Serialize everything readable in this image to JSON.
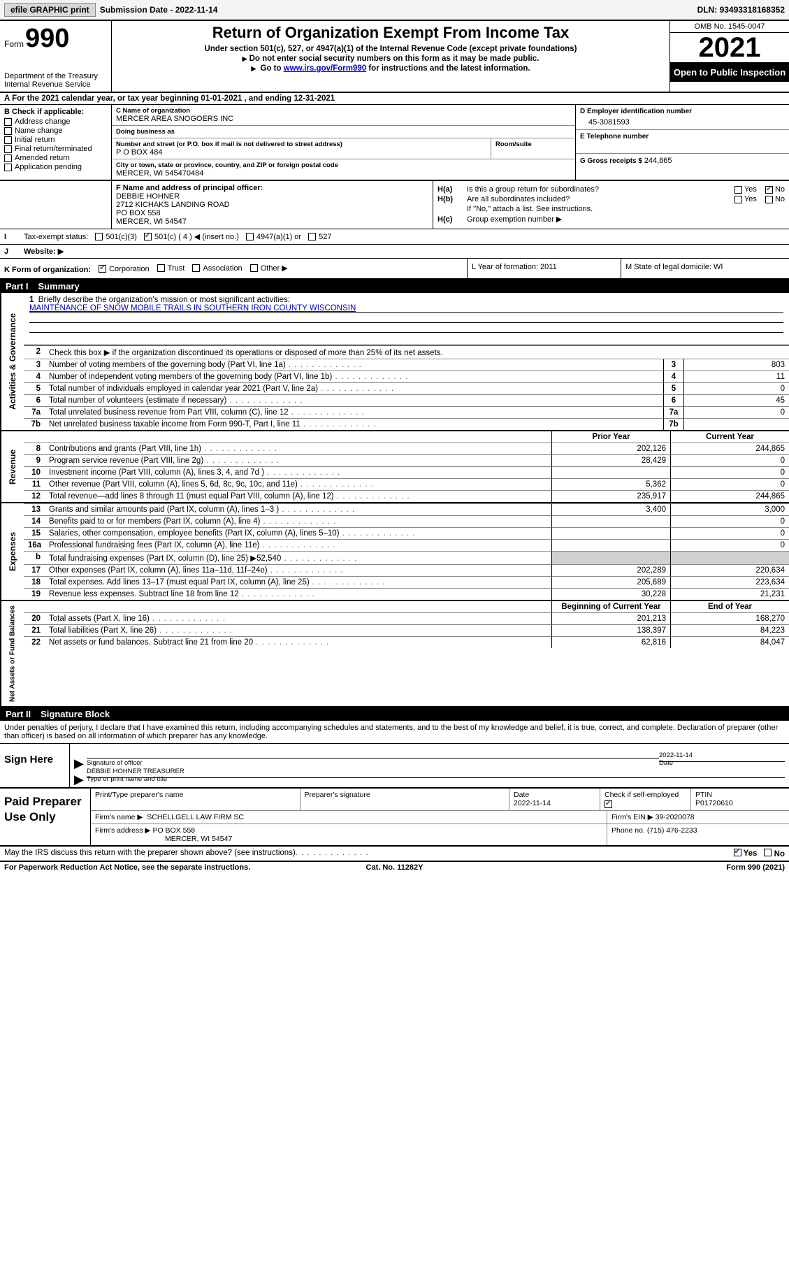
{
  "topbar": {
    "efile_btn": "efile GRAPHIC print",
    "submission_label": "Submission Date - ",
    "submission_date": "2022-11-14",
    "dln_label": "DLN: ",
    "dln": "93493318168352"
  },
  "header": {
    "form_label": "Form",
    "form_number": "990",
    "dept": "Department of the Treasury",
    "irs": "Internal Revenue Service",
    "title": "Return of Organization Exempt From Income Tax",
    "subtitle": "Under section 501(c), 527, or 4947(a)(1) of the Internal Revenue Code (except private foundations)",
    "note1": "Do not enter social security numbers on this form as it may be made public.",
    "note2_pre": "Go to ",
    "note2_link": "www.irs.gov/Form990",
    "note2_post": " for instructions and the latest information.",
    "omb": "OMB No. 1545-0047",
    "year": "2021",
    "open": "Open to Public Inspection"
  },
  "row_a": "A For the 2021 calendar year, or tax year beginning 01-01-2021    , and ending 12-31-2021",
  "col_b": {
    "hdr": "B Check if applicable:",
    "opts": [
      "Address change",
      "Name change",
      "Initial return",
      "Final return/terminated",
      "Amended return",
      "Application pending"
    ]
  },
  "col_c": {
    "name_lbl": "C Name of organization",
    "name": "MERCER AREA SNOGOERS INC",
    "dba_lbl": "Doing business as",
    "dba": "",
    "street_lbl": "Number and street (or P.O. box if mail is not delivered to street address)",
    "street": "P O BOX 484",
    "room_lbl": "Room/suite",
    "city_lbl": "City or town, state or province, country, and ZIP or foreign postal code",
    "city": "MERCER, WI  545470484"
  },
  "col_de": {
    "d_lbl": "D Employer identification number",
    "d_val": "45-3081593",
    "e_lbl": "E Telephone number",
    "e_val": "",
    "g_lbl": "G Gross receipts $ ",
    "g_val": "244,865"
  },
  "officer": {
    "lbl": "F  Name and address of principal officer:",
    "name": "DEBBIE HOHNER",
    "addr1": "2712 KICHAKS LANDING ROAD",
    "addr2": "PO BOX 558",
    "addr3": "MERCER, WI  54547"
  },
  "h": {
    "a": "Is this a group return for subordinates?",
    "b": "Are all subordinates included?",
    "b_note": "If \"No,\" attach a list. See instructions.",
    "c": "Group exemption number ▶",
    "yes": "Yes",
    "no": "No"
  },
  "row_i": {
    "tag": "I",
    "lbl": "Tax-exempt status:",
    "o1": "501(c)(3)",
    "o2": "501(c) ( 4 ) ◀ (insert no.)",
    "o3": "4947(a)(1) or",
    "o4": "527"
  },
  "row_j": {
    "tag": "J",
    "lbl": "Website: ▶"
  },
  "row_k": {
    "k_lbl": "K Form of organization:",
    "opts": [
      "Corporation",
      "Trust",
      "Association",
      "Other ▶"
    ],
    "l": "L Year of formation: 2011",
    "m": "M State of legal domicile: WI"
  },
  "part1": "Part I",
  "part1_title": "Summary",
  "sides": {
    "gov": "Activities & Governance",
    "rev": "Revenue",
    "exp": "Expenses",
    "net": "Net Assets or Fund Balances"
  },
  "mission": {
    "lbl": "Briefly describe the organization's mission or most significant activities:",
    "txt": "MAINTENANCE OF SNOW MOBILE TRAILS IN SOUTHERN IRON COUNTY WISCONSIN"
  },
  "line2": "Check this box ▶        if the organization discontinued its operations or disposed of more than 25% of its net assets.",
  "gov_lines": [
    {
      "n": "3",
      "d": "Number of voting members of the governing body (Part VI, line 1a)",
      "v": "803"
    },
    {
      "n": "4",
      "d": "Number of independent voting members of the governing body (Part VI, line 1b)",
      "v": "11"
    },
    {
      "n": "5",
      "d": "Total number of individuals employed in calendar year 2021 (Part V, line 2a)",
      "v": "0"
    },
    {
      "n": "6",
      "d": "Total number of volunteers (estimate if necessary)",
      "v": "45"
    },
    {
      "n": "7a",
      "d": "Total unrelated business revenue from Part VIII, column (C), line 12",
      "v": "0"
    },
    {
      "n": "7b",
      "d": "Net unrelated business taxable income from Form 990-T, Part I, line 11",
      "v": ""
    }
  ],
  "fin_hdr": {
    "py": "Prior Year",
    "cy": "Current Year"
  },
  "rev_lines": [
    {
      "n": "8",
      "d": "Contributions and grants (Part VIII, line 1h)",
      "py": "202,126",
      "cy": "244,865"
    },
    {
      "n": "9",
      "d": "Program service revenue (Part VIII, line 2g)",
      "py": "28,429",
      "cy": "0"
    },
    {
      "n": "10",
      "d": "Investment income (Part VIII, column (A), lines 3, 4, and 7d )",
      "py": "",
      "cy": "0"
    },
    {
      "n": "11",
      "d": "Other revenue (Part VIII, column (A), lines 5, 6d, 8c, 9c, 10c, and 11e)",
      "py": "5,362",
      "cy": "0"
    },
    {
      "n": "12",
      "d": "Total revenue—add lines 8 through 11 (must equal Part VIII, column (A), line 12)",
      "py": "235,917",
      "cy": "244,865"
    }
  ],
  "exp_lines": [
    {
      "n": "13",
      "d": "Grants and similar amounts paid (Part IX, column (A), lines 1–3 )",
      "py": "3,400",
      "cy": "3,000"
    },
    {
      "n": "14",
      "d": "Benefits paid to or for members (Part IX, column (A), line 4)",
      "py": "",
      "cy": "0"
    },
    {
      "n": "15",
      "d": "Salaries, other compensation, employee benefits (Part IX, column (A), lines 5–10)",
      "py": "",
      "cy": "0"
    },
    {
      "n": "16a",
      "d": "Professional fundraising fees (Part IX, column (A), line 11e)",
      "py": "",
      "cy": "0"
    },
    {
      "n": "b",
      "d": "Total fundraising expenses (Part IX, column (D), line 25) ▶52,540",
      "py": "SHADE",
      "cy": "SHADE"
    },
    {
      "n": "17",
      "d": "Other expenses (Part IX, column (A), lines 11a–11d, 11f–24e)",
      "py": "202,289",
      "cy": "220,634"
    },
    {
      "n": "18",
      "d": "Total expenses. Add lines 13–17 (must equal Part IX, column (A), line 25)",
      "py": "205,689",
      "cy": "223,634"
    },
    {
      "n": "19",
      "d": "Revenue less expenses. Subtract line 18 from line 12",
      "py": "30,228",
      "cy": "21,231"
    }
  ],
  "net_hdr": {
    "b": "Beginning of Current Year",
    "e": "End of Year"
  },
  "net_lines": [
    {
      "n": "20",
      "d": "Total assets (Part X, line 16)",
      "py": "201,213",
      "cy": "168,270"
    },
    {
      "n": "21",
      "d": "Total liabilities (Part X, line 26)",
      "py": "138,397",
      "cy": "84,223"
    },
    {
      "n": "22",
      "d": "Net assets or fund balances. Subtract line 21 from line 20",
      "py": "62,816",
      "cy": "84,047"
    }
  ],
  "part2": "Part II",
  "part2_title": "Signature Block",
  "sig_intro": "Under penalties of perjury, I declare that I have examined this return, including accompanying schedules and statements, and to the best of my knowledge and belief, it is true, correct, and complete. Declaration of preparer (other than officer) is based on all information of which preparer has any knowledge.",
  "sign": {
    "lbl": "Sign Here",
    "sig_of": "Signature of officer",
    "date": "Date",
    "date_val": "2022-11-14",
    "name_lbl": "Type or print name and title",
    "name": "DEBBIE HOHNER  TREASURER"
  },
  "prep": {
    "lbl": "Paid Preparer Use Only",
    "c1": "Print/Type preparer's name",
    "c2": "Preparer's signature",
    "c3": "Date",
    "c3v": "2022-11-14",
    "c4": "Check         if self-employed",
    "c5": "PTIN",
    "c5v": "P01720610",
    "firm_lbl": "Firm's name      ▶",
    "firm": "SCHELLGELL LAW FIRM SC",
    "ein_lbl": "Firm's EIN ▶",
    "ein": "39-2020078",
    "addr_lbl": "Firm's address ▶",
    "addr": "PO BOX 558",
    "addr2": "MERCER, WI  54547",
    "phone_lbl": "Phone no.",
    "phone": "(715) 476-2233"
  },
  "footer_q": "May the IRS discuss this return with the preparer shown above? (see instructions)",
  "last": {
    "l": "For Paperwork Reduction Act Notice, see the separate instructions.",
    "m": "Cat. No. 11282Y",
    "r": "Form 990 (2021)"
  }
}
